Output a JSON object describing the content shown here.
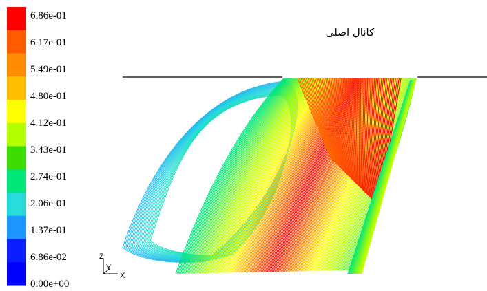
{
  "colormap": {
    "labels": [
      "6.86e-01",
      "6.17e-01",
      "5.49e-01",
      "4.80e-01",
      "4.12e-01",
      "3.43e-01",
      "2.74e-01",
      "2.06e-01",
      "1.37e-01",
      "6.86e-02",
      "0.00e+00"
    ],
    "colors": [
      "#ff0000",
      "#ff5a00",
      "#ff8c00",
      "#ffbe00",
      "#ffff00",
      "#b4ff00",
      "#3cdc00",
      "#00e678",
      "#28dcdc",
      "#1e96ff",
      "#0a1eff",
      "#0000ff"
    ]
  },
  "figure": {
    "channel_label": "کانال اصلی"
  },
  "axes_triad": {
    "z_label": "Z",
    "y_label": "Y",
    "x_label": "X"
  }
}
